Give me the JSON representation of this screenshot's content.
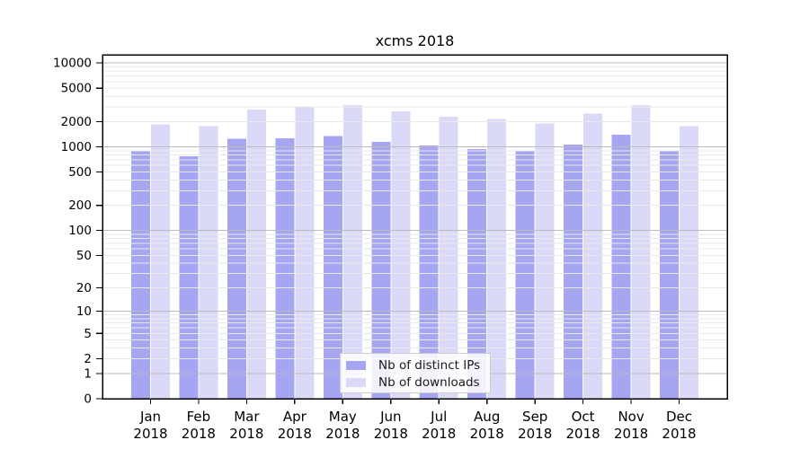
{
  "chart_data": {
    "type": "bar",
    "title": "xcms 2018",
    "categories": [
      "Jan",
      "Feb",
      "Mar",
      "Apr",
      "May",
      "Jun",
      "Jul",
      "Aug",
      "Sep",
      "Oct",
      "Nov",
      "Dec"
    ],
    "x_axis": {
      "tick_label_line2": "2018"
    },
    "series": [
      {
        "name": "Nb of distinct IPs",
        "color": "#a5a5f1",
        "values": [
          885,
          770,
          1250,
          1265,
          1350,
          1150,
          1035,
          940,
          905,
          1070,
          1395,
          900
        ]
      },
      {
        "name": "Nb of downloads",
        "color": "#dadaf8",
        "values": [
          1845,
          1770,
          2765,
          3000,
          3130,
          2655,
          2270,
          2160,
          1890,
          2480,
          3130,
          1760
        ]
      }
    ],
    "y_axis": {
      "scale": "symlog-log1p",
      "ticks": [
        0,
        1,
        2,
        5,
        10,
        20,
        50,
        100,
        200,
        500,
        1000,
        2000,
        5000,
        10000
      ],
      "ylim": [
        0,
        12500
      ]
    },
    "grid": {
      "on": true,
      "major_values": [
        1,
        10,
        100,
        1000,
        10000
      ],
      "major_color": "#bbbbbb",
      "minor_color": "#e9e9e9"
    },
    "legend": {
      "position": "lower-center"
    },
    "frame_color": "#000000"
  }
}
